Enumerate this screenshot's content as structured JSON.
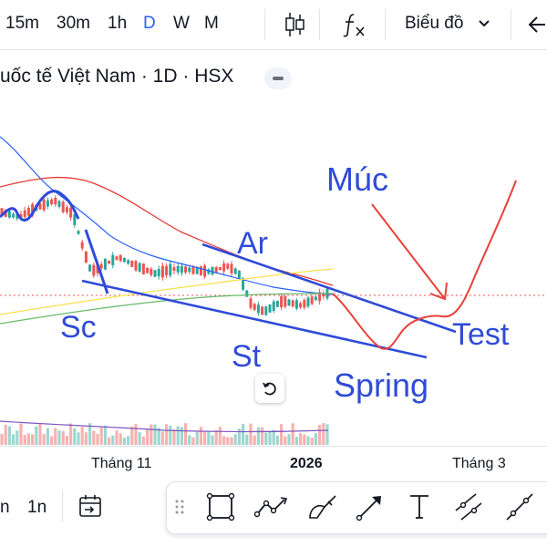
{
  "toolbar": {
    "timeframes": [
      "15m",
      "30m",
      "1h",
      "D",
      "W",
      "M"
    ],
    "active_timeframe": "D",
    "candle_icon": "candlestick-icon",
    "indicator_icon": "fx-icon",
    "chart_menu_label": "Biểu đồ",
    "back_icon": "arrow-left-icon"
  },
  "symbol": {
    "title": "uốc tế Việt Nam · 1D · HSX"
  },
  "annotations": {
    "muc": "Múc",
    "ar": "Ar",
    "sc": "Sc",
    "st": "St",
    "spring": "Spring",
    "test": "Test"
  },
  "x_axis": {
    "labels": [
      "Tháng 11",
      "2026",
      "Tháng 3"
    ]
  },
  "bottom_bar": {
    "left_items": [
      "n",
      "1n"
    ],
    "goto_icon": "calendar-goto-icon",
    "tools": [
      "drag-handle-icon",
      "rectangle-tool-icon",
      "path-tool-icon",
      "brush-tool-icon",
      "arrow-tool-icon",
      "text-tool-icon",
      "parallel-channel-icon",
      "trend-line-icon"
    ]
  },
  "colors": {
    "accent": "#2962ff",
    "up": "#26a69a",
    "down": "#ef5350",
    "annotation_blue": "#2f4bd8",
    "annotation_red": "#e8403a"
  }
}
